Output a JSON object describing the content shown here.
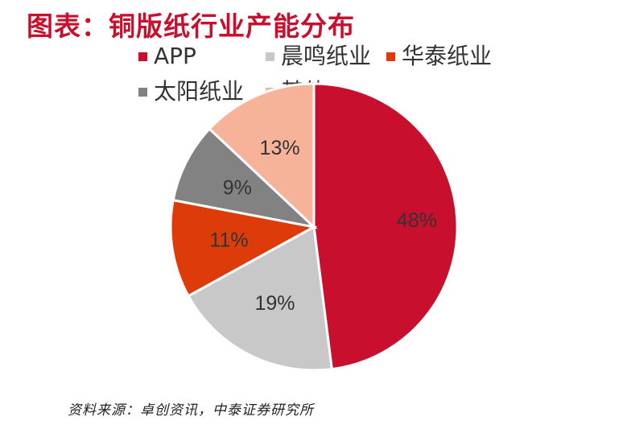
{
  "title": "图表：铜版纸行业产能分布",
  "source": "资料来源：卓创资讯，中泰证券研究所",
  "chart_data": {
    "type": "pie",
    "title": "图表：铜版纸行业产能分布",
    "legend_position": "top",
    "series": [
      {
        "name": "APP",
        "value": 48,
        "label": "48%",
        "color": "#c8102e"
      },
      {
        "name": "晨鸣纸业",
        "value": 19,
        "label": "19%",
        "color": "#c8c8c8"
      },
      {
        "name": "华泰纸业",
        "value": 11,
        "label": "11%",
        "color": "#dd3c0a"
      },
      {
        "name": "太阳纸业",
        "value": 9,
        "label": "9%",
        "color": "#828282"
      },
      {
        "name": "其他",
        "value": 13,
        "label": "13%",
        "color": "#f7b29a"
      }
    ]
  }
}
